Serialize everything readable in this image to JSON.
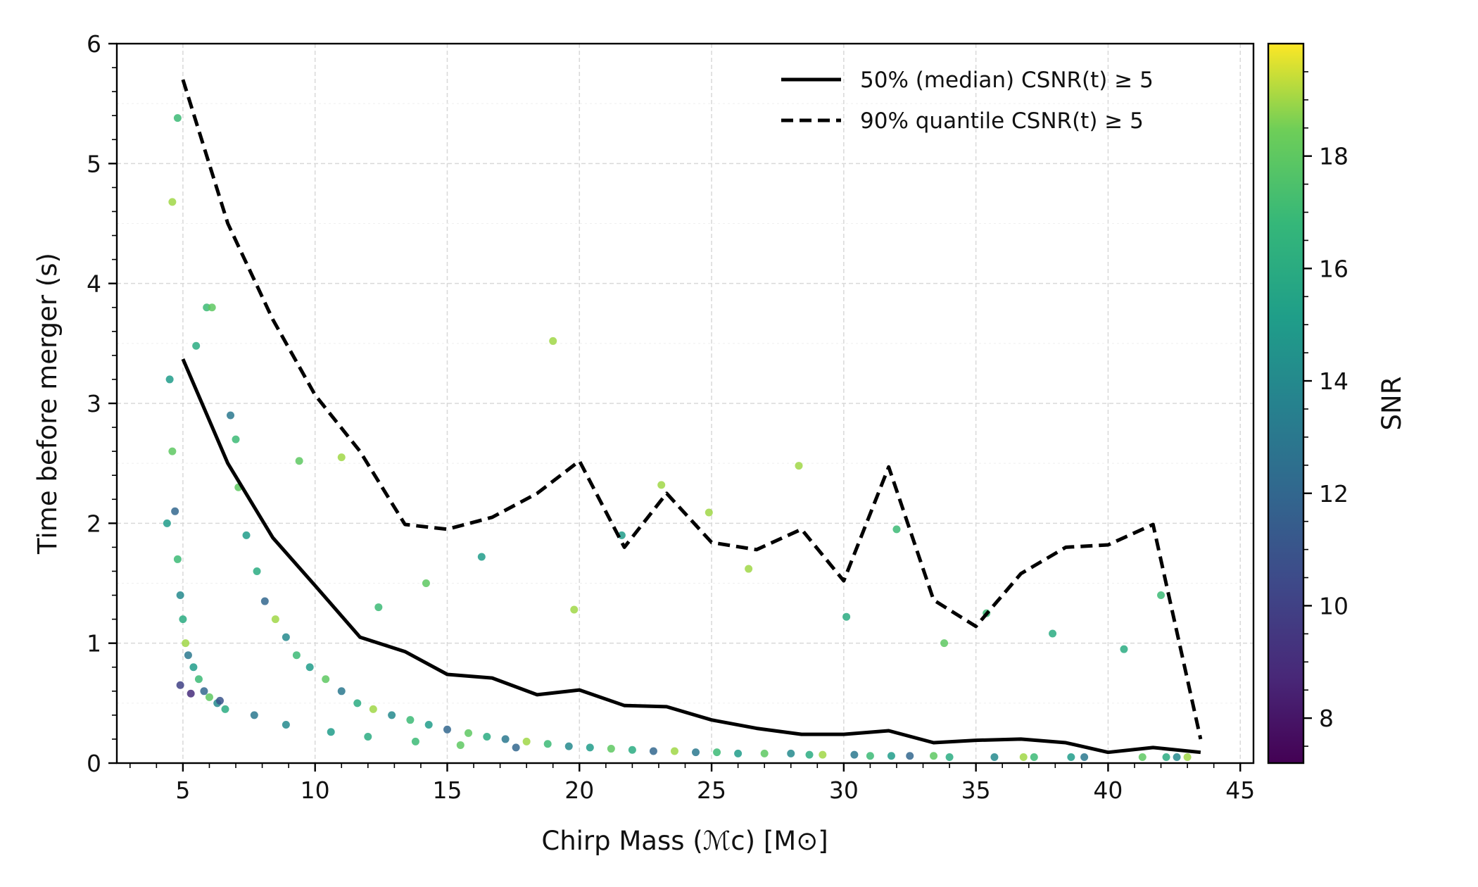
{
  "chart_data": {
    "type": "scatter",
    "title": "",
    "xlabel": "Chirp Mass (ℳc) [M⊙]",
    "ylabel": "Time before merger (s)",
    "xlim": [
      2.5,
      45.5
    ],
    "ylim": [
      0,
      6
    ],
    "xticks": [
      5,
      10,
      15,
      20,
      25,
      30,
      35,
      40,
      45
    ],
    "yticks": [
      0,
      1,
      2,
      3,
      4,
      5,
      6
    ],
    "grid": true,
    "legend": "top-right",
    "colorbar": {
      "label": "SNR",
      "range": [
        7.2,
        20
      ],
      "ticks": [
        8,
        10,
        12,
        14,
        16,
        18
      ],
      "colormap": "viridis"
    },
    "series": [
      {
        "name": "50% (median) CSNR(t) ≥ 5",
        "style": "solid",
        "color": "#000000",
        "x": [
          5.0,
          6.7,
          8.4,
          10.0,
          11.7,
          13.4,
          15.0,
          16.7,
          18.4,
          20.0,
          21.7,
          23.3,
          25.0,
          26.7,
          28.4,
          30.0,
          31.7,
          33.4,
          35.0,
          36.7,
          38.4,
          40.0,
          41.7,
          43.5
        ],
        "y": [
          3.37,
          2.5,
          1.88,
          1.48,
          1.05,
          0.93,
          0.74,
          0.71,
          0.57,
          0.61,
          0.48,
          0.47,
          0.36,
          0.29,
          0.24,
          0.24,
          0.27,
          0.17,
          0.19,
          0.2,
          0.17,
          0.09,
          0.13,
          0.09
        ]
      },
      {
        "name": "90% quantile CSNR(t) ≥ 5",
        "style": "dashed",
        "color": "#000000",
        "x": [
          5.0,
          6.7,
          8.4,
          10.0,
          11.7,
          13.4,
          15.0,
          16.7,
          18.4,
          20.0,
          21.7,
          23.3,
          25.0,
          26.7,
          28.4,
          30.0,
          31.7,
          33.4,
          35.0,
          36.7,
          38.4,
          40.0,
          41.7,
          43.5
        ],
        "y": [
          5.7,
          4.5,
          3.7,
          3.07,
          2.6,
          1.99,
          1.95,
          2.05,
          2.25,
          2.52,
          1.8,
          2.25,
          1.84,
          1.78,
          1.95,
          1.52,
          2.47,
          1.36,
          1.14,
          1.58,
          1.8,
          1.82,
          1.99,
          0.2
        ]
      }
    ],
    "scatter": {
      "name": "events",
      "color_by": "SNR",
      "x": [
        4.5,
        4.6,
        4.7,
        4.8,
        4.9,
        5.0,
        5.1,
        5.2,
        5.4,
        5.6,
        5.8,
        6.0,
        6.3,
        6.6,
        4.6,
        5.9,
        6.8,
        7.1,
        7.4,
        7.8,
        8.1,
        8.5,
        8.9,
        9.3,
        9.8,
        10.4,
        11.0,
        11.6,
        12.2,
        12.9,
        13.6,
        14.3,
        15.0,
        15.8,
        16.5,
        17.2,
        18.0,
        18.8,
        19.6,
        20.4,
        21.2,
        22.0,
        22.8,
        23.6,
        24.4,
        25.2,
        26.0,
        27.0,
        28.0,
        28.7,
        29.2,
        30.4,
        31.0,
        31.8,
        32.5,
        33.4,
        34.0,
        35.7,
        36.8,
        37.2,
        38.6,
        39.1,
        41.3,
        42.2,
        42.6,
        43.0,
        19.0,
        14.2,
        16.3,
        12.4,
        11.0,
        9.4,
        7.0,
        6.1,
        5.5,
        4.8,
        4.4,
        4.9,
        5.3,
        6.4,
        7.7,
        8.9,
        10.6,
        12.0,
        13.8,
        15.5,
        17.6,
        19.8,
        21.6,
        23.1,
        24.9,
        26.4,
        28.3,
        30.1,
        32.0,
        33.8,
        35.4,
        37.9,
        40.6,
        42.0
      ],
      "y": [
        3.2,
        2.6,
        2.1,
        1.7,
        1.4,
        1.2,
        1.0,
        0.9,
        0.8,
        0.7,
        0.6,
        0.55,
        0.5,
        0.45,
        4.68,
        3.8,
        2.9,
        2.3,
        1.9,
        1.6,
        1.35,
        1.2,
        1.05,
        0.9,
        0.8,
        0.7,
        0.6,
        0.5,
        0.45,
        0.4,
        0.36,
        0.32,
        0.28,
        0.25,
        0.22,
        0.2,
        0.18,
        0.16,
        0.14,
        0.13,
        0.12,
        0.11,
        0.1,
        0.1,
        0.09,
        0.09,
        0.08,
        0.08,
        0.08,
        0.07,
        0.07,
        0.07,
        0.06,
        0.06,
        0.06,
        0.06,
        0.05,
        0.05,
        0.05,
        0.05,
        0.05,
        0.05,
        0.05,
        0.05,
        0.05,
        0.05,
        3.52,
        1.5,
        1.72,
        1.3,
        2.55,
        2.52,
        2.7,
        3.8,
        3.48,
        5.38,
        2.0,
        0.65,
        0.58,
        0.52,
        0.4,
        0.32,
        0.26,
        0.22,
        0.18,
        0.15,
        0.13,
        1.28,
        1.9,
        2.32,
        2.09,
        1.62,
        2.48,
        1.22,
        1.95,
        1.0,
        1.25,
        1.08,
        0.95,
        1.4
      ],
      "snr": [
        15,
        18,
        12,
        17,
        14,
        16,
        19,
        13,
        15,
        17,
        12,
        18,
        14,
        16,
        19,
        17,
        13,
        18,
        15,
        16,
        12,
        19,
        14,
        17,
        15,
        18,
        13,
        16,
        19,
        14,
        17,
        15,
        12,
        18,
        16,
        13,
        19,
        17,
        14,
        15,
        18,
        16,
        12,
        19,
        13,
        17,
        15,
        18,
        14,
        16,
        19,
        13,
        17,
        15,
        12,
        18,
        16,
        14,
        19,
        17,
        15,
        13,
        18,
        16,
        14,
        19,
        19,
        18,
        15,
        17,
        19,
        18,
        17,
        18,
        16,
        17,
        15,
        10,
        9,
        11,
        13,
        14,
        15,
        16,
        17,
        18,
        12,
        19,
        15,
        19,
        19,
        19,
        19,
        16,
        17,
        18,
        17,
        16,
        16,
        17
      ]
    }
  }
}
